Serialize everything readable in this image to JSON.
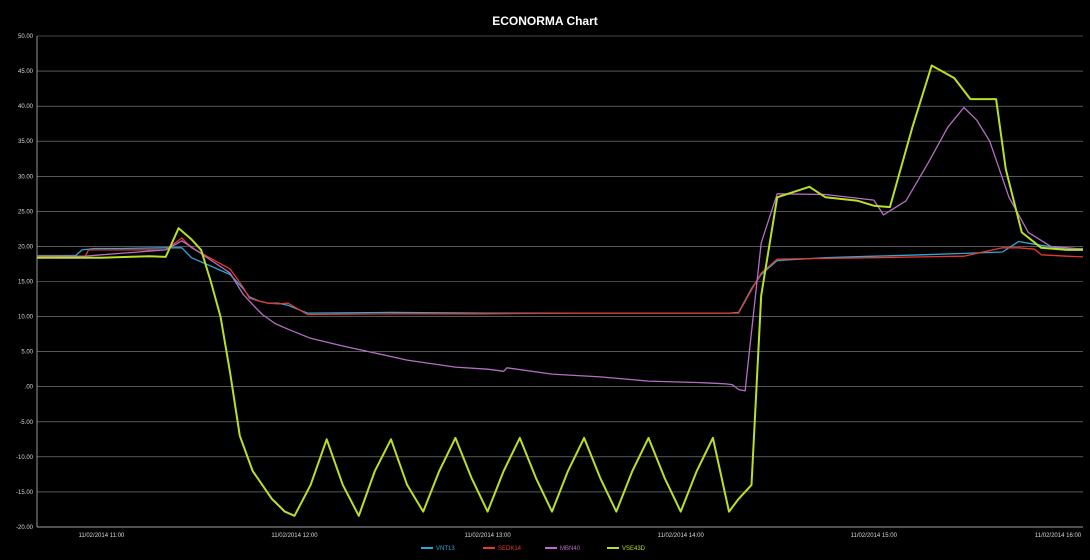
{
  "chart_data": {
    "type": "line",
    "title": "ECONORMA Chart",
    "xlabel": "",
    "ylabel": "",
    "ylim": [
      -20,
      50
    ],
    "grid": true,
    "legend_placement": "bottom",
    "y_ticks": [
      "50.00",
      "45.00",
      "40.00",
      "35.00",
      "30.00",
      "25.00",
      "20.00",
      "15.00",
      "10.00",
      "5.00",
      ".00",
      "-5.00",
      "-10.00",
      "-15.00",
      "-20.00"
    ],
    "x_ticks": [
      "11/02/2014 11:00",
      "11/02/2014 12:00",
      "11/02/2014 13:00",
      "11/02/2014 14:00",
      "11/02/2014 15:00",
      "11/02/2014 16:00"
    ],
    "series": [
      {
        "name": "VNT13",
        "color": "#2fa8d8",
        "x": [
          "10:40",
          "10:52",
          "10:54",
          "10:58",
          "11:06",
          "11:20",
          "11:25",
          "11:28",
          "11:40",
          "11:44",
          "11:46",
          "11:49",
          "11:52",
          "11:55",
          "11:58",
          "12:04",
          "12:30",
          "13:00",
          "13:30",
          "14:00",
          "14:15",
          "14:18",
          "14:22",
          "14:25",
          "14:30",
          "14:45",
          "15:00",
          "15:15",
          "15:28",
          "15:40",
          "15:45",
          "15:50",
          "16:00",
          "16:05"
        ],
        "y": [
          18.7,
          18.7,
          19.5,
          19.7,
          19.7,
          19.8,
          19.8,
          18.4,
          16,
          14,
          12.8,
          12.2,
          11.9,
          11.9,
          11.6,
          10.5,
          10.6,
          10.5,
          10.5,
          10.5,
          10.5,
          10.6,
          14,
          16,
          18,
          18.4,
          18.6,
          18.8,
          19,
          19.2,
          20.7,
          20.3,
          19.6,
          19.7
        ]
      },
      {
        "name": "SEDK14",
        "color": "#e53a2b",
        "x": [
          "10:40",
          "10:55",
          "10:56",
          "11:00",
          "11:20",
          "11:25",
          "11:28",
          "11:40",
          "11:44",
          "11:46",
          "11:49",
          "11:52",
          "11:55",
          "11:58",
          "12:04",
          "12:30",
          "13:00",
          "13:30",
          "14:00",
          "14:15",
          "14:18",
          "14:22",
          "14:25",
          "14:30",
          "14:45",
          "15:00",
          "15:15",
          "15:28",
          "15:40",
          "15:45",
          "15:50",
          "15:52",
          "16:00",
          "16:05"
        ],
        "y": [
          18.6,
          18.6,
          19.5,
          19.5,
          19.5,
          21.2,
          19.8,
          16.8,
          14.2,
          12.6,
          12.2,
          11.9,
          11.8,
          11.9,
          10.3,
          10.4,
          10.4,
          10.5,
          10.5,
          10.5,
          10.5,
          13.8,
          16.2,
          18.2,
          18.3,
          18.4,
          18.5,
          18.6,
          19.8,
          19.8,
          19.6,
          18.8,
          18.6,
          18.5
        ]
      },
      {
        "name": "MBN40",
        "color": "#b56ec4",
        "x": [
          "10:40",
          "10:55",
          "11:00",
          "11:20",
          "11:25",
          "11:28",
          "11:40",
          "11:44",
          "11:47",
          "11:50",
          "11:54",
          "11:58",
          "12:05",
          "12:15",
          "12:25",
          "12:35",
          "12:50",
          "13:00",
          "13:05",
          "13:06",
          "13:20",
          "13:35",
          "13:50",
          "14:05",
          "14:10",
          "14:14",
          "14:16",
          "14:18",
          "14:20",
          "14:25",
          "14:30",
          "14:45",
          "15:00",
          "15:03",
          "15:10",
          "15:17",
          "15:23",
          "15:28",
          "15:32",
          "15:36",
          "15:42",
          "15:48",
          "15:55",
          "16:05"
        ],
        "y": [
          18.5,
          18.6,
          18.8,
          19.5,
          20.8,
          19.9,
          16.2,
          13.2,
          11.7,
          10.3,
          9,
          8.2,
          6.9,
          5.8,
          4.8,
          3.8,
          2.8,
          2.5,
          2.2,
          2.7,
          1.8,
          1.4,
          0.8,
          0.6,
          0.5,
          0.4,
          0.3,
          -0.4,
          -0.6,
          20.5,
          27.5,
          27.4,
          26.6,
          24.5,
          26.5,
          32,
          37,
          39.8,
          38,
          35,
          27,
          22,
          20,
          19.6
        ]
      },
      {
        "name": "VSE43D",
        "color": "#b9e025",
        "x": [
          "10:40",
          "11:00",
          "11:15",
          "11:20",
          "11:24",
          "11:28",
          "11:31",
          "11:34",
          "11:37",
          "11:40",
          "11:43",
          "11:47",
          "11:50",
          "11:53",
          "11:57",
          "12:00",
          "12:05",
          "12:10",
          "12:15",
          "12:20",
          "12:25",
          "12:30",
          "12:35",
          "12:40",
          "12:45",
          "12:50",
          "12:55",
          "13:00",
          "13:05",
          "13:10",
          "13:15",
          "13:20",
          "13:25",
          "13:30",
          "13:35",
          "13:40",
          "13:45",
          "13:50",
          "13:55",
          "14:00",
          "14:05",
          "14:10",
          "14:15",
          "14:18",
          "14:22",
          "14:25",
          "14:30",
          "14:40",
          "14:45",
          "14:55",
          "15:00",
          "15:05",
          "15:12",
          "15:18",
          "15:25",
          "15:30",
          "15:38",
          "15:41",
          "15:46",
          "15:52",
          "16:00",
          "16:05"
        ],
        "y": [
          18.4,
          18.4,
          18.6,
          18.5,
          22.6,
          21,
          19.5,
          15,
          10,
          2,
          -7,
          -12,
          -14,
          -16,
          -17.8,
          -18.4,
          -14,
          -7.5,
          -14,
          -18.4,
          -12,
          -7.5,
          -14,
          -17.8,
          -12,
          -7.3,
          -13,
          -17.8,
          -12,
          -7.3,
          -13,
          -17.8,
          -12,
          -7.3,
          -13,
          -17.8,
          -12,
          -7.3,
          -13,
          -17.8,
          -12,
          -7.3,
          -17.8,
          -16,
          -14,
          13,
          27,
          28.5,
          27,
          26.5,
          25.8,
          25.6,
          37,
          45.8,
          44,
          41,
          41,
          31,
          22,
          19.8,
          19.5,
          19.5
        ]
      }
    ]
  }
}
